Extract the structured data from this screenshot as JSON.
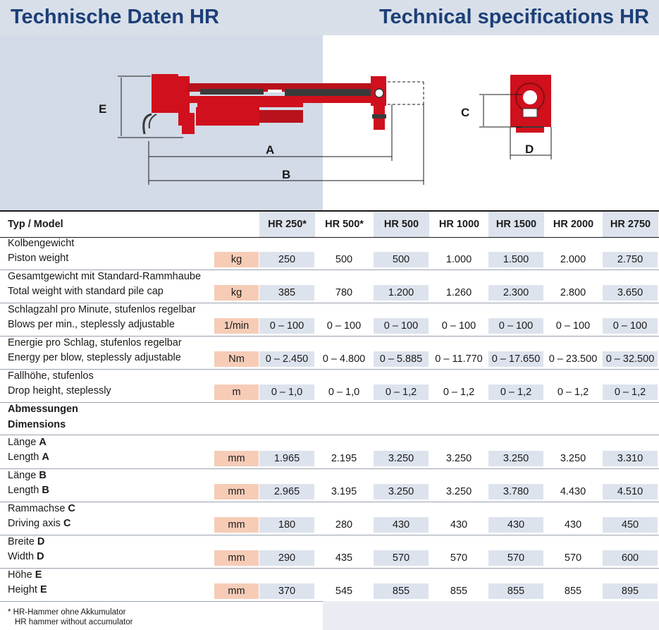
{
  "header": {
    "title_de": "Technische Daten HR",
    "title_en": "Technical specifications HR"
  },
  "drawing": {
    "labels": {
      "a": "A",
      "b": "B",
      "c": "C",
      "d": "D",
      "e": "E"
    },
    "colors": {
      "hammer": "#d0101c",
      "dark": "#3a3a3a",
      "dim": "#1a1a1a"
    }
  },
  "table": {
    "header_label": "Typ / Model",
    "models": [
      "HR 250*",
      "HR 500*",
      "HR 500",
      "HR 1000",
      "HR 1500",
      "HR 2000",
      "HR 2750"
    ],
    "rows": [
      {
        "de": "Kolbengewicht",
        "en": "Piston weight",
        "unit": "kg",
        "values": [
          "250",
          "500",
          "500",
          "1.000",
          "1.500",
          "2.000",
          "2.750"
        ]
      },
      {
        "de": "Gesamtgewicht mit Standard-Rammhaube",
        "en": "Total weight with standard pile cap",
        "unit": "kg",
        "values": [
          "385",
          "780",
          "1.200",
          "1.260",
          "2.300",
          "2.800",
          "3.650"
        ]
      },
      {
        "de": "Schlagzahl pro Minute, stufenlos regelbar",
        "en": "Blows per min., steplessly adjustable",
        "unit": "1/min",
        "values": [
          "0 – 100",
          "0 – 100",
          "0 – 100",
          "0 – 100",
          "0 – 100",
          "0 – 100",
          "0 – 100"
        ]
      },
      {
        "de": "Energie pro Schlag, stufenlos regelbar",
        "en": "Energy per blow, steplessly adjustable",
        "unit": "Nm",
        "values": [
          "0 – 2.450",
          "0 – 4.800",
          "0 – 5.885",
          "0 – 11.770",
          "0 – 17.650",
          "0 – 23.500",
          "0 – 32.500"
        ]
      },
      {
        "de": "Fallhöhe, stufenlos",
        "en": "Drop height, steplessly",
        "unit": "m",
        "values": [
          "0 – 1,0",
          "0 – 1,0",
          "0 – 1,2",
          "0 – 1,2",
          "0 – 1,2",
          "0 – 1,2",
          "0 – 1,2"
        ]
      }
    ],
    "dimensions_de": "Abmessungen",
    "dimensions_en": "Dimensions",
    "dim_rows": [
      {
        "de": "Länge ",
        "de_letter": "A",
        "en": "Length ",
        "en_letter": "A",
        "unit": "mm",
        "values": [
          "1.965",
          "2.195",
          "3.250",
          "3.250",
          "3.250",
          "3.250",
          "3.310"
        ]
      },
      {
        "de": "Länge ",
        "de_letter": "B",
        "en": "Length ",
        "en_letter": "B",
        "unit": "mm",
        "values": [
          "2.965",
          "3.195",
          "3.250",
          "3.250",
          "3.780",
          "4.430",
          "4.510"
        ]
      },
      {
        "de": "Rammachse ",
        "de_letter": "C",
        "en": "Driving axis ",
        "en_letter": "C",
        "unit": "mm",
        "values": [
          "180",
          "280",
          "430",
          "430",
          "430",
          "430",
          "450"
        ]
      },
      {
        "de": "Breite ",
        "de_letter": "D",
        "en": "Width ",
        "en_letter": "D",
        "unit": "mm",
        "values": [
          "290",
          "435",
          "570",
          "570",
          "570",
          "570",
          "600"
        ]
      },
      {
        "de": "Höhe ",
        "de_letter": "E",
        "en": "Height ",
        "en_letter": "E",
        "unit": "mm",
        "values": [
          "370",
          "545",
          "855",
          "855",
          "855",
          "855",
          "895"
        ]
      }
    ]
  },
  "footnote": {
    "line1": "* HR-Hammer ohne Akkumulator",
    "line2": "HR hammer without accumulator"
  }
}
